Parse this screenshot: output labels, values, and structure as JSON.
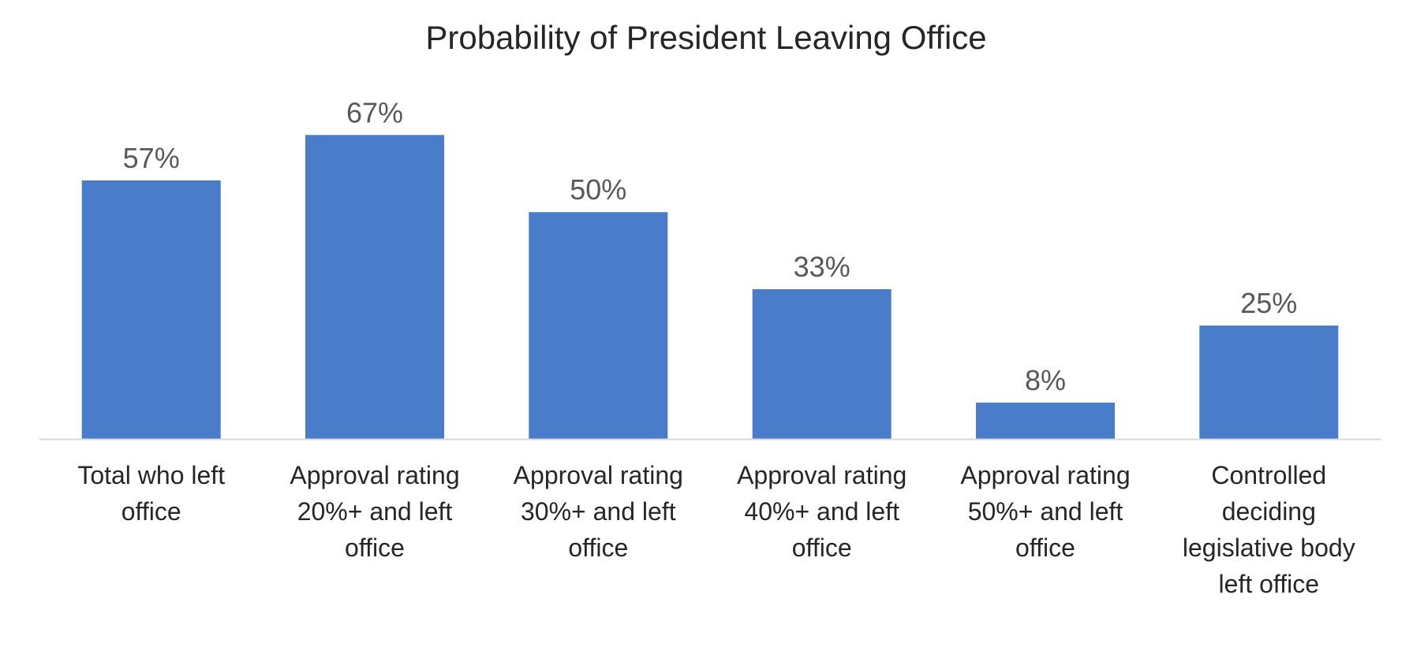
{
  "chart_data": {
    "type": "bar",
    "title": "Probability of President Leaving Office",
    "xlabel": "",
    "ylabel": "",
    "categories": [
      [
        "Total who left",
        "office"
      ],
      [
        "Approval rating",
        "20%+ and left",
        "office"
      ],
      [
        "Approval rating",
        "30%+ and left",
        "office"
      ],
      [
        "Approval rating",
        "40%+ and left",
        "office"
      ],
      [
        "Approval rating",
        "50%+ and  left",
        "office"
      ],
      [
        "Controlled",
        "deciding",
        "legislative body",
        "left office"
      ]
    ],
    "values": [
      57,
      67,
      50,
      33,
      8,
      25
    ],
    "data_labels": [
      "57%",
      "67%",
      "50%",
      "33%",
      "8%",
      "25%"
    ],
    "ylim": [
      0,
      80
    ],
    "grid": false,
    "legend": "none",
    "bar_color": "#4a7dc9",
    "axis_color": "#d9d9d9"
  }
}
